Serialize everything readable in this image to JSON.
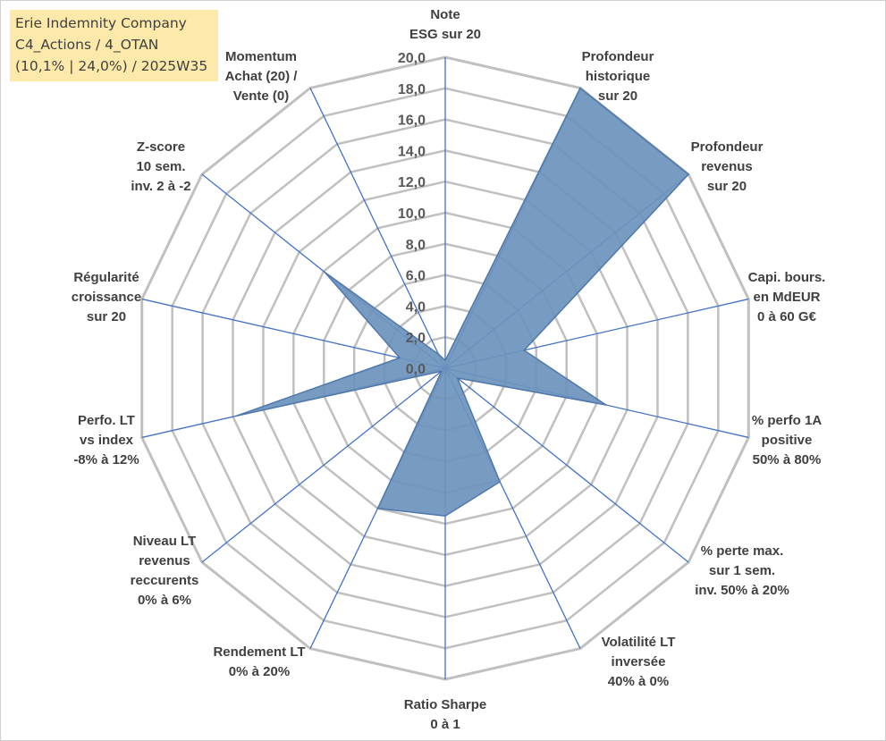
{
  "title_box": {
    "line1": "Erie Indemnity Company",
    "line2": "C4_Actions / 4_OTAN",
    "line3": "(10,1% | 24,0%) / 2025W35"
  },
  "colors": {
    "fill": "#6d92bd",
    "stroke": "#4f78aa",
    "spoke": "#4472c4",
    "grid": "#c0c0c0",
    "title_bg": "#fde9a9"
  },
  "chart_data": {
    "type": "radar",
    "title": "",
    "r_range": [
      0,
      20
    ],
    "ticks": [
      "0,0",
      "2,0",
      "4,0",
      "6,0",
      "8,0",
      "10,0",
      "12,0",
      "14,0",
      "16,0",
      "18,0",
      "20,0"
    ],
    "grid": true,
    "axes": [
      {
        "label": [
          "Note",
          "ESG sur 20"
        ],
        "value": 0.5
      },
      {
        "label": [
          "Profondeur",
          "historique",
          "sur 20"
        ],
        "value": 20.0
      },
      {
        "label": [
          "Profondeur",
          "revenus",
          "sur 20"
        ],
        "value": 20.0
      },
      {
        "label": [
          "Capi. bours.",
          "en MdEUR",
          "0 à 60 G€"
        ],
        "value": 5.2
      },
      {
        "label": [
          "% perfo 1A",
          "positive",
          "50% à 80%"
        ],
        "value": 10.6
      },
      {
        "label": [
          "% perte max.",
          "sur 1 sem.",
          "inv. 50% à 20%"
        ],
        "value": 1.0
      },
      {
        "label": [
          "Volatilité LT",
          "inversée",
          "40% à 0%"
        ],
        "value": 8.1
      },
      {
        "label": [
          "Ratio Sharpe",
          "0 à 1"
        ],
        "value": 9.5
      },
      {
        "label": [
          "Rendement LT",
          "0% à 20%"
        ],
        "value": 10.0
      },
      {
        "label": [
          "Niveau LT",
          "revenus",
          "reccurents",
          "0% à 6%"
        ],
        "value": 0.3
      },
      {
        "label": [
          "Perfo. LT",
          "vs index",
          "-8% à 12%"
        ],
        "value": 13.8
      },
      {
        "label": [
          "Régularité",
          "croissance",
          "sur 20"
        ],
        "value": 3.0
      },
      {
        "label": [
          "Z-score",
          "10 sem.",
          "inv. 2 à -2"
        ],
        "value": 9.9
      },
      {
        "label": [
          "Momentum",
          "Achat (20) /",
          "Vente (0)"
        ],
        "value": 1.0
      }
    ]
  }
}
